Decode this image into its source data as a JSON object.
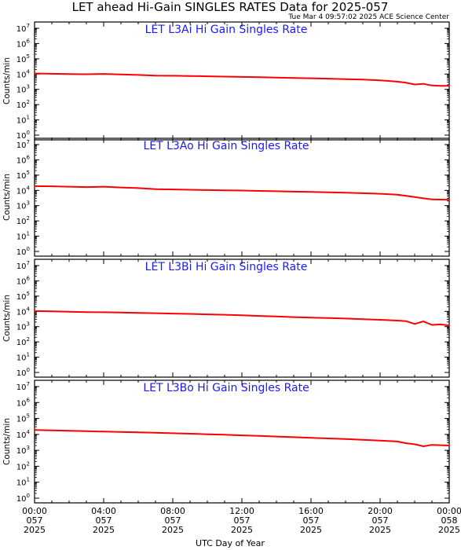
{
  "page": {
    "title": "LET ahead Hi-Gain SINGLES RATES Data for 2025-057",
    "timestamp": "Tue Mar  4 09:57:02 2025 ACE Science Center",
    "xlabel": "UTC Day of Year",
    "ylabel": "Counts/min",
    "line_color": "#ff0000",
    "panel_title_color": "#1a1aff"
  },
  "chart_data": [
    {
      "type": "line",
      "title": "LET L3Ai Hi Gain Singles Rate",
      "ylabel": "Counts/min",
      "yscale": "log",
      "ylim": [
        1,
        10000000
      ],
      "yticks": [
        "10^0",
        "10^1",
        "10^2",
        "10^3",
        "10^4",
        "10^5",
        "10^6",
        "10^7"
      ],
      "xlim": [
        "2025-057 00:00",
        "2025-058 00:00"
      ],
      "x_hours": [
        0,
        1,
        2,
        3,
        4,
        5,
        6,
        7,
        8,
        9,
        10,
        11,
        12,
        13,
        14,
        15,
        16,
        17,
        18,
        19,
        20,
        21,
        21.5,
        22,
        22.5,
        23,
        23.5,
        24
      ],
      "values": [
        11000,
        10500,
        10000,
        9800,
        10200,
        9500,
        8800,
        8000,
        7800,
        7500,
        7200,
        6800,
        6500,
        6200,
        5900,
        5600,
        5300,
        5000,
        4700,
        4400,
        3900,
        3200,
        2700,
        2100,
        2300,
        1800,
        1700,
        1700
      ],
      "grid": false
    },
    {
      "type": "line",
      "title": "LET L3Ao Hi Gain Singles Rate",
      "ylabel": "Counts/min",
      "yscale": "log",
      "ylim": [
        1,
        10000000
      ],
      "yticks": [
        "10^0",
        "10^1",
        "10^2",
        "10^3",
        "10^4",
        "10^5",
        "10^6",
        "10^7"
      ],
      "xlim": [
        "2025-057 00:00",
        "2025-058 00:00"
      ],
      "x_hours": [
        0,
        1,
        2,
        3,
        4,
        5,
        6,
        7,
        8,
        9,
        10,
        11,
        12,
        13,
        14,
        15,
        16,
        17,
        18,
        19,
        20,
        21,
        21.5,
        22,
        22.5,
        23,
        23.5,
        24
      ],
      "values": [
        19000,
        18500,
        17500,
        16500,
        17500,
        15500,
        14000,
        12000,
        11500,
        11000,
        10500,
        10000,
        9800,
        9200,
        8800,
        8300,
        7900,
        7400,
        7000,
        6500,
        6000,
        5200,
        4400,
        3700,
        3000,
        2600,
        2500,
        2400
      ],
      "grid": false
    },
    {
      "type": "line",
      "title": "LET L3Bi Hi Gain Singles Rate",
      "ylabel": "Counts/min",
      "yscale": "log",
      "ylim": [
        1,
        10000000
      ],
      "yticks": [
        "10^0",
        "10^1",
        "10^2",
        "10^3",
        "10^4",
        "10^5",
        "10^6",
        "10^7"
      ],
      "xlim": [
        "2025-057 00:00",
        "2025-058 00:00"
      ],
      "x_hours": [
        0,
        1,
        2,
        3,
        4,
        5,
        6,
        7,
        8,
        9,
        10,
        11,
        12,
        13,
        14,
        15,
        16,
        17,
        18,
        19,
        20,
        21,
        21.5,
        22,
        22.5,
        23,
        23.5,
        24
      ],
      "values": [
        10500,
        10000,
        9500,
        9000,
        8800,
        8400,
        8000,
        7600,
        7200,
        6800,
        6400,
        6000,
        5500,
        5000,
        4600,
        4200,
        3900,
        3700,
        3400,
        3100,
        2800,
        2500,
        2300,
        1500,
        2200,
        1300,
        1400,
        1200
      ],
      "grid": false
    },
    {
      "type": "line",
      "title": "LET L3Bo Hi Gain Singles Rate",
      "ylabel": "Counts/min",
      "yscale": "log",
      "ylim": [
        1,
        10000000
      ],
      "yticks": [
        "10^0",
        "10^1",
        "10^2",
        "10^3",
        "10^4",
        "10^5",
        "10^6",
        "10^7"
      ],
      "xlim": [
        "2025-057 00:00",
        "2025-058 00:00"
      ],
      "x_hours": [
        0,
        1,
        2,
        3,
        4,
        5,
        6,
        7,
        8,
        9,
        10,
        11,
        12,
        13,
        14,
        15,
        16,
        17,
        18,
        19,
        20,
        21,
        21.5,
        22,
        22.5,
        23,
        23.5,
        24
      ],
      "values": [
        19000,
        18000,
        17000,
        16000,
        15000,
        14200,
        13400,
        12600,
        11800,
        11000,
        10200,
        9500,
        8700,
        8000,
        7300,
        6700,
        6100,
        5600,
        5100,
        4600,
        4100,
        3600,
        2800,
        2400,
        1800,
        2200,
        2100,
        2000
      ],
      "grid": false
    }
  ],
  "x_axis": {
    "ticks": [
      {
        "hour": 0,
        "time": "00:00",
        "doy": "057",
        "year": "2025"
      },
      {
        "hour": 4,
        "time": "04:00",
        "doy": "057",
        "year": "2025"
      },
      {
        "hour": 8,
        "time": "08:00",
        "doy": "057",
        "year": "2025"
      },
      {
        "hour": 12,
        "time": "12:00",
        "doy": "057",
        "year": "2025"
      },
      {
        "hour": 16,
        "time": "16:00",
        "doy": "057",
        "year": "2025"
      },
      {
        "hour": 20,
        "time": "20:00",
        "doy": "057",
        "year": "2025"
      },
      {
        "hour": 24,
        "time": "00:00",
        "doy": "058",
        "year": "2025"
      }
    ]
  }
}
